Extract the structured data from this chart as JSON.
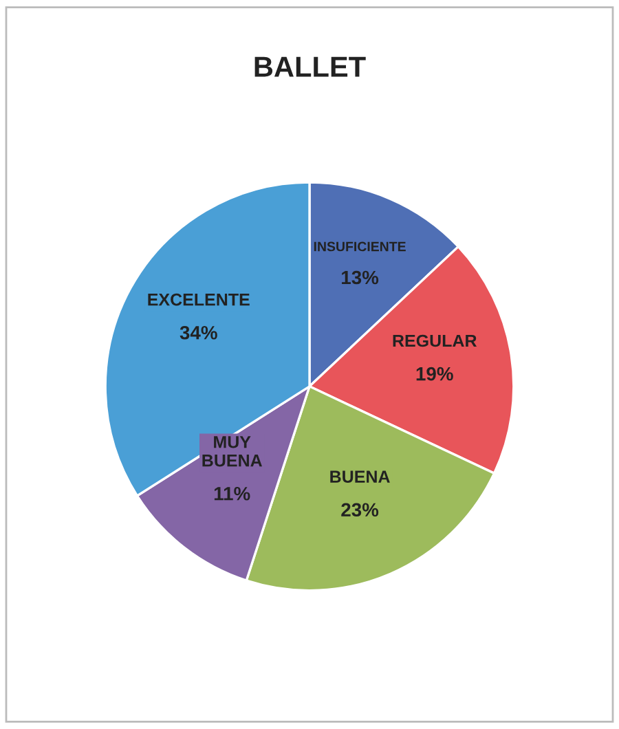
{
  "chart_data": {
    "type": "pie",
    "title": "BALLET",
    "categories": [
      "INSUFICIENTE",
      "REGULAR",
      "BUENA",
      "MUY BUENA",
      "EXCELENTE"
    ],
    "values": [
      13,
      19,
      23,
      11,
      34
    ],
    "value_labels": [
      "13%",
      "19%",
      "23%",
      "11%",
      "34%"
    ],
    "colors": [
      "#4f6fb5",
      "#e8555a",
      "#9dbb5c",
      "#8466a6",
      "#4a9fd6"
    ],
    "legend": false
  }
}
